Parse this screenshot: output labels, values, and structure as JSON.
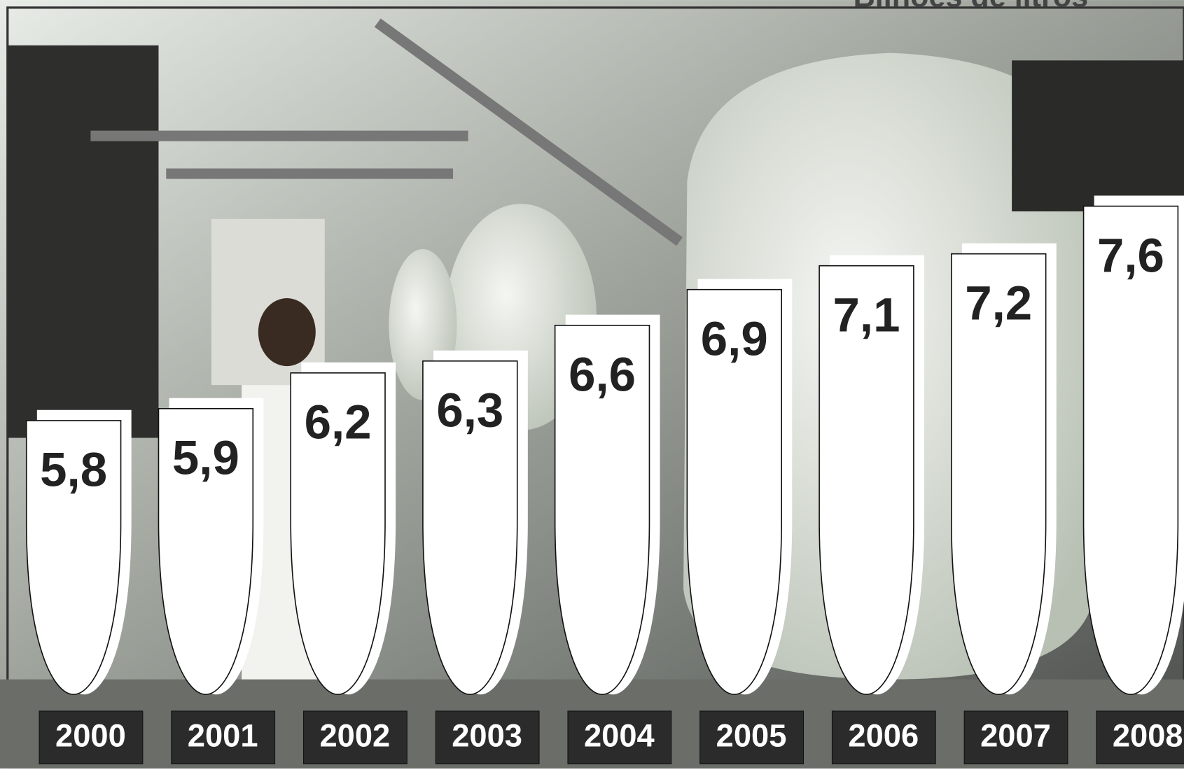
{
  "chart_data": {
    "type": "bar",
    "title": "Bilhões de litros",
    "categories": [
      "2000",
      "2001",
      "2002",
      "2003",
      "2004",
      "2005",
      "2006",
      "2007",
      "2008"
    ],
    "values": [
      5.8,
      5.9,
      6.2,
      6.3,
      6.6,
      6.9,
      7.1,
      7.2,
      7.6
    ],
    "value_labels": [
      "5,8",
      "5,9",
      "6,2",
      "6,3",
      "6,6",
      "6,9",
      "7,1",
      "7,2",
      "7,6"
    ],
    "color": "#ffffff",
    "ylim": [
      3.5,
      8
    ]
  }
}
